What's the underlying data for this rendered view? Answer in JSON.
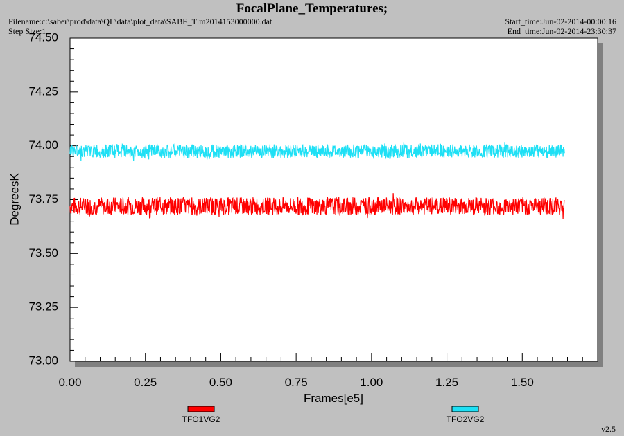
{
  "header": {
    "title": "FocalPlane_Temperatures;",
    "filename": "Filename:c:\\saber\\prod\\data\\QL\\data\\plot_data\\SABE_Tlm2014153000000.dat",
    "step_size": "Step Size:1",
    "start_time": "Start_time:Jun-02-2014-00:00:16",
    "end_time": "End_time:Jun-02-2014-23:30:37"
  },
  "version": "v2.5",
  "colors": {
    "series1": "#ff0000",
    "series2": "#1ee0f5",
    "plot_bg": "#ffffff",
    "page_bg": "#c0c0c0"
  },
  "chart_data": {
    "type": "line",
    "title": "FocalPlane_Temperatures;",
    "xlabel": "Frames[e5]",
    "ylabel": "DegreesK",
    "xlim": [
      0,
      1.75
    ],
    "ylim": [
      73.0,
      74.5
    ],
    "x_ticks": [
      "0.00",
      "0.25",
      "0.50",
      "0.75",
      "1.00",
      "1.25",
      "1.50"
    ],
    "y_ticks": [
      "73.00",
      "73.25",
      "73.50",
      "73.75",
      "74.00",
      "74.25",
      "74.50"
    ],
    "grid": false,
    "legend_position": "bottom",
    "series": [
      {
        "name": "TFO1VG2",
        "color": "#ff0000",
        "x_range": [
          0.0,
          1.64
        ],
        "mean": 73.72,
        "min": 73.66,
        "max": 73.78
      },
      {
        "name": "TFO2VG2",
        "color": "#1ee0f5",
        "x_range": [
          0.0,
          1.64
        ],
        "mean": 73.97,
        "min": 73.93,
        "max": 74.02
      }
    ]
  }
}
